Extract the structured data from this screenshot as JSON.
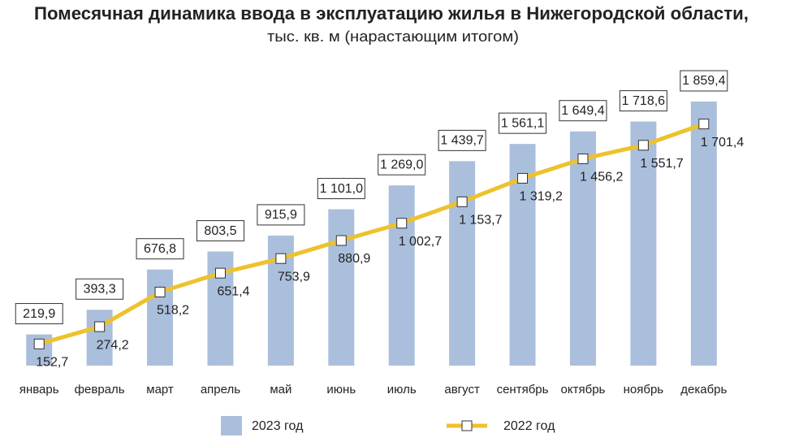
{
  "chart_data": {
    "type": "bar",
    "title": "Помесячная динамика ввода в эксплуатацию жилья в Нижегородской области,",
    "subtitle": "тыс. кв. м (нарастающим итогом)",
    "categories": [
      "январь",
      "февраль",
      "март",
      "апрель",
      "май",
      "июнь",
      "июль",
      "август",
      "сентябрь",
      "октябрь",
      "ноябрь",
      "декабрь"
    ],
    "ylim": [
      0,
      1900
    ],
    "series": [
      {
        "name": "2023 год",
        "type": "bar",
        "color": "#aabfdc",
        "values": [
          219.9,
          393.3,
          676.8,
          803.5,
          915.9,
          1101.0,
          1269.0,
          1439.7,
          1561.1,
          1649.4,
          1718.6,
          1859.4
        ],
        "value_labels": [
          "219,9",
          "393,3",
          "676,8",
          "803,5",
          "915,9",
          "1 101,0",
          "1 269,0",
          "1 439,7",
          "1 561,1",
          "1 649,4",
          "1 718,6",
          "1 859,4"
        ]
      },
      {
        "name": "2022 год",
        "type": "line",
        "color": "#edc22c",
        "values": [
          152.7,
          274.2,
          518.2,
          651.4,
          753.9,
          880.9,
          1002.7,
          1153.7,
          1319.2,
          1456.2,
          1551.7,
          1701.4
        ],
        "value_labels": [
          "152,7",
          "274,2",
          "518,2",
          "651,4",
          "753,9",
          "880,9",
          "1 002,7",
          "1 153,7",
          "1 319,2",
          "1 456,2",
          "1 551,7",
          "1 701,4"
        ]
      }
    ]
  }
}
